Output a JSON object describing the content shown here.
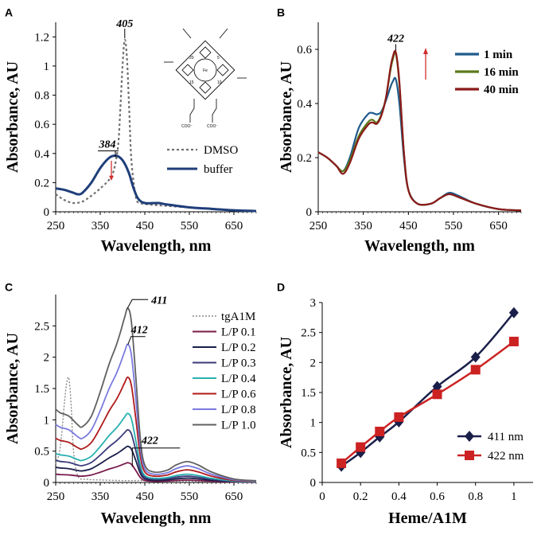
{
  "chart_data": [
    {
      "panel": "A",
      "type": "line",
      "xlabel": "Wavelength,  nm",
      "ylabel": "Absorbance, AU",
      "xlim": [
        250,
        700
      ],
      "ylim": [
        0,
        1.3
      ],
      "x_ticks": [
        "250",
        "350",
        "450",
        "550",
        "650"
      ],
      "x_tick_values": [
        250,
        350,
        450,
        550,
        650
      ],
      "y_ticks": [
        "0",
        "0.2",
        "0.4",
        "0.6",
        "0.8",
        "1",
        "1.2"
      ],
      "y_tick_values": [
        0,
        0.2,
        0.4,
        0.6,
        0.8,
        1.0,
        1.2
      ],
      "legend": [
        "DMSO",
        "buffer"
      ],
      "annotations": [
        "405",
        "384"
      ],
      "annotation_values": [
        405,
        384
      ],
      "inset": "heme structure",
      "inset_labels": [
        "Fe",
        "20",
        "5",
        "10",
        "15",
        "COO⁻",
        "COO⁻"
      ],
      "series": [
        {
          "name": "DMSO",
          "color": "#707070",
          "dash": true,
          "x": [
            250,
            270,
            290,
            310,
            330,
            350,
            370,
            380,
            390,
            395,
            400,
            405,
            410,
            415,
            420,
            430,
            440,
            460,
            500,
            550,
            600,
            650,
            700
          ],
          "y": [
            0.12,
            0.08,
            0.06,
            0.07,
            0.11,
            0.16,
            0.22,
            0.28,
            0.45,
            0.7,
            1.0,
            1.18,
            1.05,
            0.7,
            0.35,
            0.1,
            0.06,
            0.05,
            0.04,
            0.03,
            0.02,
            0.01,
            0.005
          ]
        },
        {
          "name": "buffer",
          "color": "#1f3e7a",
          "dash": false,
          "x": [
            250,
            270,
            290,
            300,
            310,
            330,
            350,
            370,
            384,
            395,
            405,
            415,
            425,
            435,
            450,
            480,
            500,
            550,
            600,
            650,
            700
          ],
          "y": [
            0.16,
            0.15,
            0.13,
            0.12,
            0.13,
            0.2,
            0.3,
            0.37,
            0.385,
            0.37,
            0.33,
            0.26,
            0.16,
            0.09,
            0.06,
            0.06,
            0.05,
            0.03,
            0.02,
            0.01,
            0.005
          ]
        }
      ]
    },
    {
      "panel": "B",
      "type": "line",
      "xlabel": "Wavelength,  nm",
      "ylabel": "Absorbance, AU",
      "xlim": [
        250,
        700
      ],
      "ylim": [
        0,
        0.7
      ],
      "x_ticks": [
        "250",
        "350",
        "450",
        "550",
        "650"
      ],
      "x_tick_values": [
        250,
        350,
        450,
        550,
        650
      ],
      "y_ticks": [
        "0",
        "0.2",
        "0.4",
        "0.6"
      ],
      "y_tick_values": [
        0,
        0.2,
        0.4,
        0.6
      ],
      "legend": [
        "1 min",
        "16 min",
        "40 min"
      ],
      "annotations": [
        "422"
      ],
      "annotation_values": [
        422
      ],
      "series": [
        {
          "name": "1 min",
          "color": "#1f5a8c",
          "x": [
            250,
            270,
            290,
            305,
            320,
            340,
            360,
            370,
            380,
            390,
            400,
            410,
            415,
            422,
            430,
            440,
            450,
            470,
            500,
            520,
            540,
            560,
            600,
            650,
            700
          ],
          "y": [
            0.22,
            0.2,
            0.17,
            0.15,
            0.2,
            0.31,
            0.36,
            0.365,
            0.36,
            0.37,
            0.41,
            0.46,
            0.48,
            0.49,
            0.4,
            0.2,
            0.08,
            0.03,
            0.03,
            0.05,
            0.07,
            0.06,
            0.03,
            0.01,
            0.005
          ]
        },
        {
          "name": "16 min",
          "color": "#5a7a1a",
          "x": [
            250,
            270,
            290,
            305,
            320,
            340,
            360,
            370,
            380,
            390,
            400,
            410,
            415,
            422,
            430,
            440,
            450,
            470,
            500,
            520,
            540,
            560,
            600,
            650,
            700
          ],
          "y": [
            0.22,
            0.2,
            0.17,
            0.15,
            0.19,
            0.28,
            0.33,
            0.34,
            0.33,
            0.36,
            0.42,
            0.52,
            0.56,
            0.585,
            0.47,
            0.22,
            0.08,
            0.03,
            0.03,
            0.05,
            0.065,
            0.055,
            0.03,
            0.01,
            0.005
          ]
        },
        {
          "name": "40 min",
          "color": "#8b1a1a",
          "x": [
            250,
            270,
            290,
            305,
            320,
            340,
            360,
            370,
            380,
            390,
            400,
            410,
            415,
            422,
            430,
            440,
            450,
            470,
            500,
            520,
            540,
            560,
            600,
            650,
            700
          ],
          "y": [
            0.22,
            0.2,
            0.17,
            0.14,
            0.18,
            0.27,
            0.32,
            0.33,
            0.325,
            0.355,
            0.42,
            0.53,
            0.57,
            0.59,
            0.48,
            0.22,
            0.08,
            0.03,
            0.03,
            0.05,
            0.065,
            0.055,
            0.03,
            0.01,
            0.005
          ]
        }
      ]
    },
    {
      "panel": "C",
      "type": "line",
      "xlabel": "Wavelength,  nm",
      "ylabel": "Absorbance, AU",
      "xlim": [
        250,
        700
      ],
      "ylim": [
        0,
        3
      ],
      "x_ticks": [
        "250",
        "350",
        "450",
        "550",
        "650"
      ],
      "x_tick_values": [
        250,
        350,
        450,
        550,
        650
      ],
      "y_ticks": [
        "0",
        "0.5",
        "1",
        "1.5",
        "2",
        "2.5"
      ],
      "y_tick_values": [
        0,
        0.5,
        1.0,
        1.5,
        2.0,
        2.5
      ],
      "legend": [
        "tgA1M",
        "L/P 0.1",
        "L/P 0.2",
        "L/P 0.3",
        "L/P 0.4",
        "L/P 0.6",
        "L/P 0.8",
        "L/P 1.0"
      ],
      "annotations": [
        "411",
        "412",
        "422"
      ],
      "annotation_values": [
        411,
        412,
        422
      ],
      "series": [
        {
          "name": "tgA1M",
          "color": "#888888",
          "dash": true,
          "x": [
            250,
            260,
            270,
            275,
            280,
            285,
            290,
            300,
            320,
            350,
            400,
            450,
            500,
            550,
            600,
            650,
            700
          ],
          "y": [
            0.3,
            0.55,
            1.3,
            1.6,
            1.65,
            1.2,
            0.5,
            0.1,
            0.05,
            0.04,
            0.03,
            0.03,
            0.02,
            0.02,
            0.01,
            0.01,
            0.0
          ]
        },
        {
          "name": "L/P 0.1",
          "color": "#7a1a4a",
          "scale": 0.3
        },
        {
          "name": "L/P 0.2",
          "color": "#1a1f4a",
          "scale": 0.55
        },
        {
          "name": "L/P 0.3",
          "color": "#3a3a7a",
          "scale": 0.8
        },
        {
          "name": "L/P 0.4",
          "color": "#2ab0b0",
          "scale": 1.05
        },
        {
          "name": "L/P 0.6",
          "color": "#b01a1a",
          "scale": 1.6
        },
        {
          "name": "L/P 0.8",
          "color": "#7a7ae0",
          "scale": 2.1
        },
        {
          "name": "L/P 1.0",
          "color": "#606060",
          "scale": 2.65
        }
      ],
      "base_shape_x": [
        250,
        260,
        280,
        300,
        310,
        330,
        350,
        370,
        385,
        395,
        405,
        412,
        420,
        430,
        440,
        450,
        470,
        500,
        520,
        545,
        570,
        600,
        650,
        700
      ],
      "base_shape_y": [
        0.42,
        0.4,
        0.38,
        0.33,
        0.32,
        0.38,
        0.52,
        0.68,
        0.78,
        0.86,
        0.95,
        1.0,
        0.92,
        0.6,
        0.25,
        0.1,
        0.06,
        0.07,
        0.1,
        0.12,
        0.1,
        0.06,
        0.02,
        0.01
      ]
    },
    {
      "panel": "D",
      "type": "line",
      "xlabel": "Heme/A1M",
      "ylabel": "Absorbance, AU",
      "xlim": [
        0,
        1.1
      ],
      "ylim": [
        0,
        3
      ],
      "x_ticks": [
        "0",
        "0.2",
        "0.4",
        "0.6",
        "0.8",
        "1"
      ],
      "x_tick_values": [
        0,
        0.2,
        0.4,
        0.6,
        0.8,
        1.0
      ],
      "y_ticks": [
        "0",
        "0.5",
        "1",
        "1.5",
        "2",
        "2.5",
        "3"
      ],
      "y_tick_values": [
        0,
        0.5,
        1.0,
        1.5,
        2.0,
        2.5,
        3.0
      ],
      "legend": [
        "411 nm",
        "422 nm"
      ],
      "series": [
        {
          "name": "411 nm",
          "color": "#1a1f4a",
          "marker": "diamond",
          "x": [
            0.1,
            0.2,
            0.3,
            0.4,
            0.6,
            0.8,
            1.0
          ],
          "y": [
            0.27,
            0.5,
            0.76,
            1.01,
            1.6,
            2.09,
            2.83
          ]
        },
        {
          "name": "422 nm",
          "color": "#cc2222",
          "marker": "square",
          "x": [
            0.1,
            0.2,
            0.3,
            0.4,
            0.6,
            0.8,
            1.0
          ],
          "y": [
            0.32,
            0.59,
            0.85,
            1.09,
            1.47,
            1.88,
            2.35
          ]
        }
      ]
    }
  ]
}
